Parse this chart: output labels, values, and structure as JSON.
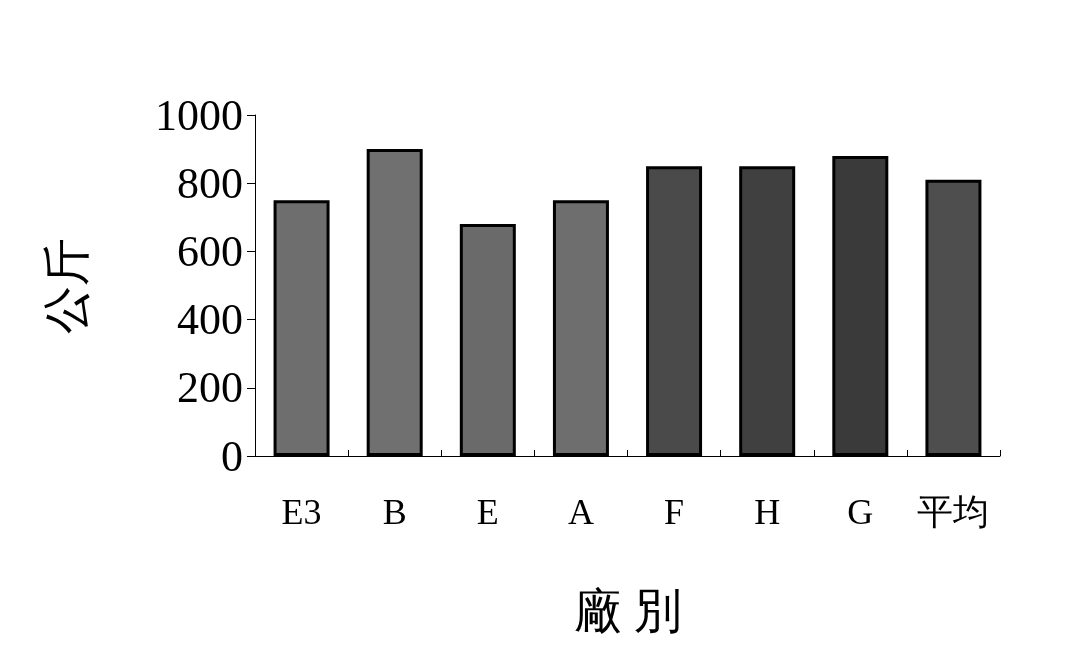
{
  "chart_data": {
    "type": "bar",
    "xlabel": "廠 別",
    "ylabel": "公斤",
    "categories": [
      "E3",
      "B",
      "E",
      "A",
      "F",
      "H",
      "G",
      "平均"
    ],
    "values": [
      750,
      900,
      680,
      750,
      850,
      850,
      880,
      810
    ],
    "colors": [
      "#6e6e6e",
      "#707070",
      "#6a6a6a",
      "#6e6e6e",
      "#4a4a4a",
      "#404040",
      "#3a3a3a",
      "#4e4e4e"
    ],
    "ylim": [
      0,
      1000
    ],
    "yticks": [
      0,
      200,
      400,
      600,
      800,
      1000
    ],
    "grid": false
  }
}
